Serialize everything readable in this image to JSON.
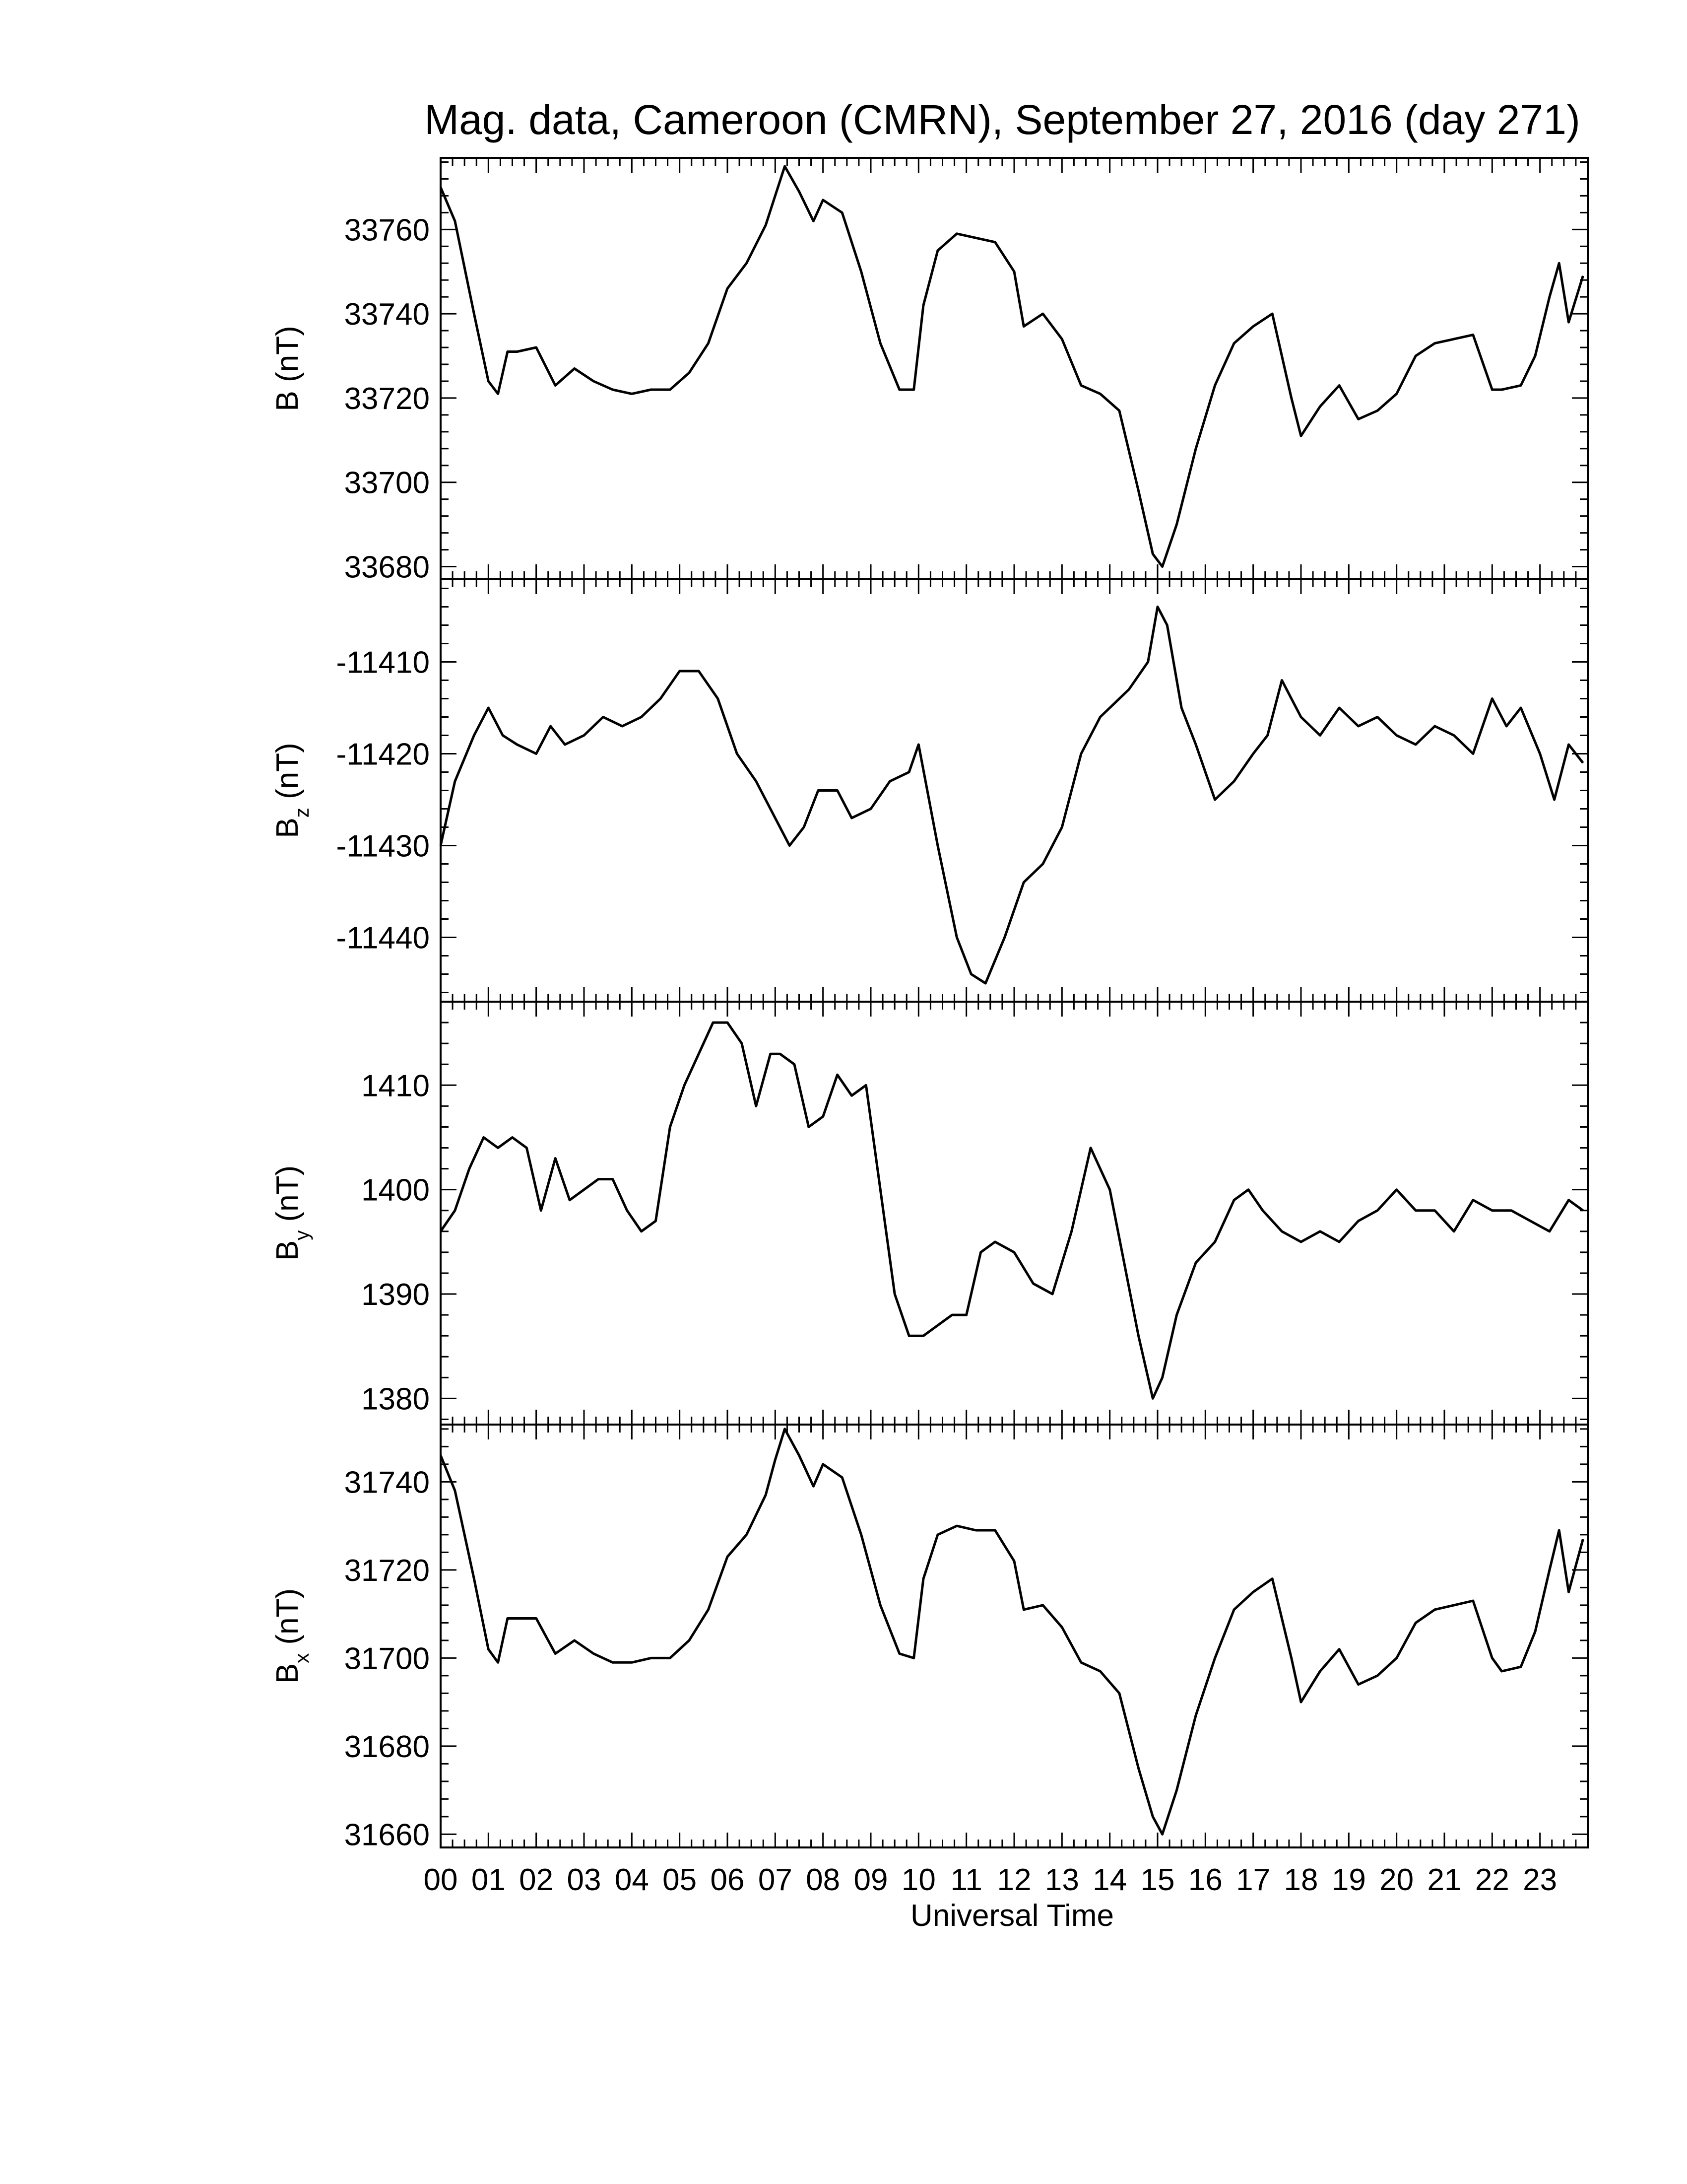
{
  "title": "Mag. data, Cameroon (CMRN), September 27, 2016 (day 271)",
  "chart_data": [
    {
      "type": "line",
      "ylabel": "B (nT)",
      "ylabel_main": "B",
      "ylabel_sub": "",
      "ylabel_unit": "(nT)",
      "ylim": [
        33677,
        33777
      ],
      "yticks": [
        33680,
        33700,
        33720,
        33740,
        33760
      ],
      "ytick_labels": [
        "33680",
        "33700",
        "33720",
        "33740",
        "33760"
      ],
      "x": [
        0,
        0.3,
        0.7,
        1.0,
        1.2,
        1.4,
        1.6,
        2.0,
        2.4,
        2.8,
        3.2,
        3.6,
        4.0,
        4.4,
        4.8,
        5.2,
        5.6,
        6.0,
        6.4,
        6.8,
        7.0,
        7.2,
        7.5,
        7.8,
        8.0,
        8.4,
        8.8,
        9.2,
        9.6,
        9.9,
        10.1,
        10.4,
        10.8,
        11.2,
        11.6,
        12.0,
        12.2,
        12.6,
        13.0,
        13.4,
        13.8,
        14.2,
        14.6,
        14.9,
        15.1,
        15.4,
        15.8,
        16.2,
        16.6,
        17.0,
        17.4,
        17.8,
        18.0,
        18.4,
        18.8,
        19.2,
        19.6,
        20.0,
        20.4,
        20.8,
        21.2,
        21.6,
        22.0,
        22.2,
        22.6,
        22.9,
        23.2,
        23.4,
        23.6,
        23.9
      ],
      "values": [
        33770,
        33762,
        33740,
        33724,
        33721,
        33731,
        33731,
        33732,
        33723,
        33727,
        33724,
        33722,
        33721,
        33722,
        33722,
        33726,
        33733,
        33746,
        33752,
        33761,
        33768,
        33775,
        33769,
        33762,
        33767,
        33764,
        33750,
        33733,
        33722,
        33722,
        33742,
        33755,
        33759,
        33758,
        33757,
        33750,
        33737,
        33740,
        33734,
        33723,
        33721,
        33717,
        33698,
        33683,
        33680,
        33690,
        33708,
        33723,
        33733,
        33737,
        33740,
        33720,
        33711,
        33718,
        33723,
        33715,
        33717,
        33721,
        33730,
        33733,
        33734,
        33735,
        33722,
        33722,
        33723,
        33730,
        33744,
        33752,
        33738,
        33749
      ],
      "x_ticks_hours": [
        0,
        1,
        2,
        3,
        4,
        5,
        6,
        7,
        8,
        9,
        10,
        11,
        12,
        13,
        14,
        15,
        16,
        17,
        18,
        19,
        20,
        21,
        22,
        23
      ],
      "xlim": [
        0,
        24
      ]
    },
    {
      "type": "line",
      "ylabel": "Bz (nT)",
      "ylabel_main": "B",
      "ylabel_sub": "z",
      "ylabel_unit": "(nT)",
      "ylim": [
        -11447,
        -11401
      ],
      "yticks": [
        -11440,
        -11430,
        -11420,
        -11410
      ],
      "ytick_labels": [
        "-11440",
        "-11430",
        "-11420",
        "-11410"
      ],
      "x": [
        0,
        0.3,
        0.7,
        1.0,
        1.3,
        1.6,
        2.0,
        2.3,
        2.6,
        3.0,
        3.4,
        3.8,
        4.2,
        4.6,
        5.0,
        5.4,
        5.8,
        6.2,
        6.6,
        7.0,
        7.3,
        7.6,
        7.9,
        8.3,
        8.6,
        9.0,
        9.4,
        9.8,
        10.0,
        10.4,
        10.8,
        11.1,
        11.4,
        11.8,
        12.2,
        12.6,
        13.0,
        13.4,
        13.8,
        14.0,
        14.4,
        14.8,
        15.0,
        15.2,
        15.5,
        15.8,
        16.2,
        16.6,
        17.0,
        17.3,
        17.6,
        17.8,
        18.0,
        18.4,
        18.8,
        19.2,
        19.6,
        20.0,
        20.4,
        20.8,
        21.2,
        21.6,
        22.0,
        22.3,
        22.6,
        23.0,
        23.3,
        23.6,
        23.9
      ],
      "values": [
        -11430,
        -11423,
        -11418,
        -11415,
        -11418,
        -11419,
        -11420,
        -11417,
        -11419,
        -11418,
        -11416,
        -11417,
        -11416,
        -11414,
        -11411,
        -11411,
        -11414,
        -11420,
        -11423,
        -11427,
        -11430,
        -11428,
        -11424,
        -11424,
        -11427,
        -11426,
        -11423,
        -11422,
        -11419,
        -11430,
        -11440,
        -11444,
        -11445,
        -11440,
        -11434,
        -11432,
        -11428,
        -11420,
        -11416,
        -11415,
        -11413,
        -11410,
        -11404,
        -11406,
        -11415,
        -11419,
        -11425,
        -11423,
        -11420,
        -11418,
        -11412,
        -11414,
        -11416,
        -11418,
        -11415,
        -11417,
        -11416,
        -11418,
        -11419,
        -11417,
        -11418,
        -11420,
        -11414,
        -11417,
        -11415,
        -11420,
        -11425,
        -11419,
        -11421
      ],
      "x_ticks_hours": [
        0,
        1,
        2,
        3,
        4,
        5,
        6,
        7,
        8,
        9,
        10,
        11,
        12,
        13,
        14,
        15,
        16,
        17,
        18,
        19,
        20,
        21,
        22,
        23
      ],
      "xlim": [
        0,
        24
      ]
    },
    {
      "type": "line",
      "ylabel": "By (nT)",
      "ylabel_main": "B",
      "ylabel_sub": "y",
      "ylabel_unit": "(nT)",
      "ylim": [
        1377.5,
        1418
      ],
      "yticks": [
        1380,
        1390,
        1400,
        1410
      ],
      "ytick_labels": [
        "1380",
        "1390",
        "1400",
        "1410"
      ],
      "x": [
        0,
        0.3,
        0.6,
        0.9,
        1.2,
        1.5,
        1.8,
        2.1,
        2.4,
        2.7,
        3.0,
        3.3,
        3.6,
        3.9,
        4.2,
        4.5,
        4.8,
        5.1,
        5.4,
        5.7,
        6.0,
        6.3,
        6.6,
        6.9,
        7.1,
        7.4,
        7.7,
        8.0,
        8.3,
        8.6,
        8.9,
        9.2,
        9.5,
        9.8,
        10.1,
        10.4,
        10.7,
        11.0,
        11.3,
        11.6,
        12.0,
        12.4,
        12.8,
        13.2,
        13.6,
        14.0,
        14.3,
        14.6,
        14.9,
        15.1,
        15.4,
        15.8,
        16.2,
        16.6,
        16.9,
        17.2,
        17.6,
        18.0,
        18.4,
        18.8,
        19.2,
        19.6,
        20.0,
        20.4,
        20.8,
        21.2,
        21.6,
        22.0,
        22.4,
        22.8,
        23.2,
        23.6,
        23.9
      ],
      "values": [
        1396,
        1398,
        1402,
        1405,
        1404,
        1405,
        1404,
        1398,
        1403,
        1399,
        1400,
        1401,
        1401,
        1398,
        1396,
        1397,
        1406,
        1410,
        1413,
        1416,
        1416,
        1414,
        1408,
        1413,
        1413,
        1412,
        1406,
        1407,
        1411,
        1409,
        1410,
        1400,
        1390,
        1386,
        1386,
        1387,
        1388,
        1388,
        1394,
        1395,
        1394,
        1391,
        1390,
        1396,
        1404,
        1400,
        1393,
        1386,
        1380,
        1382,
        1388,
        1393,
        1395,
        1399,
        1400,
        1398,
        1396,
        1395,
        1396,
        1395,
        1397,
        1398,
        1400,
        1398,
        1398,
        1396,
        1399,
        1398,
        1398,
        1397,
        1396,
        1399,
        1398
      ],
      "x_ticks_hours": [
        0,
        1,
        2,
        3,
        4,
        5,
        6,
        7,
        8,
        9,
        10,
        11,
        12,
        13,
        14,
        15,
        16,
        17,
        18,
        19,
        20,
        21,
        22,
        23
      ],
      "xlim": [
        0,
        24
      ]
    },
    {
      "type": "line",
      "ylabel": "Bx (nT)",
      "ylabel_main": "B",
      "ylabel_sub": "x",
      "ylabel_unit": "(nT)",
      "ylim": [
        31657,
        31753
      ],
      "yticks": [
        31660,
        31680,
        31700,
        31720,
        31740
      ],
      "ytick_labels": [
        "31660",
        "31680",
        "31700",
        "31720",
        "31740"
      ],
      "x": [
        0,
        0.3,
        0.7,
        1.0,
        1.2,
        1.4,
        1.6,
        2.0,
        2.4,
        2.8,
        3.2,
        3.6,
        4.0,
        4.4,
        4.8,
        5.2,
        5.6,
        6.0,
        6.4,
        6.8,
        7.0,
        7.2,
        7.5,
        7.8,
        8.0,
        8.4,
        8.8,
        9.2,
        9.6,
        9.9,
        10.1,
        10.4,
        10.8,
        11.2,
        11.6,
        12.0,
        12.2,
        12.6,
        13.0,
        13.4,
        13.8,
        14.2,
        14.6,
        14.9,
        15.1,
        15.4,
        15.8,
        16.2,
        16.6,
        17.0,
        17.4,
        17.8,
        18.0,
        18.4,
        18.8,
        19.2,
        19.6,
        20.0,
        20.4,
        20.8,
        21.2,
        21.6,
        22.0,
        22.2,
        22.6,
        22.9,
        23.2,
        23.4,
        23.6,
        23.9
      ],
      "values": [
        31746,
        31738,
        31718,
        31702,
        31699,
        31709,
        31709,
        31709,
        31701,
        31704,
        31701,
        31699,
        31699,
        31700,
        31700,
        31704,
        31711,
        31723,
        31728,
        31737,
        31745,
        31752,
        31746,
        31739,
        31744,
        31741,
        31728,
        31712,
        31701,
        31700,
        31718,
        31728,
        31730,
        31729,
        31729,
        31722,
        31711,
        31712,
        31707,
        31699,
        31697,
        31692,
        31675,
        31664,
        31660,
        31670,
        31687,
        31700,
        31711,
        31715,
        31718,
        31700,
        31690,
        31697,
        31702,
        31694,
        31696,
        31700,
        31708,
        31711,
        31712,
        31713,
        31700,
        31697,
        31698,
        31706,
        31720,
        31729,
        31715,
        31727
      ],
      "x_ticks_hours": [
        0,
        1,
        2,
        3,
        4,
        5,
        6,
        7,
        8,
        9,
        10,
        11,
        12,
        13,
        14,
        15,
        16,
        17,
        18,
        19,
        20,
        21,
        22,
        23
      ],
      "xlim": [
        0,
        24
      ]
    }
  ],
  "x_tick_labels": [
    "00",
    "01",
    "02",
    "03",
    "04",
    "05",
    "06",
    "07",
    "08",
    "09",
    "10",
    "11",
    "12",
    "13",
    "14",
    "15",
    "16",
    "17",
    "18",
    "19",
    "20",
    "21",
    "22",
    "23"
  ],
  "xlabel": "Universal Time"
}
